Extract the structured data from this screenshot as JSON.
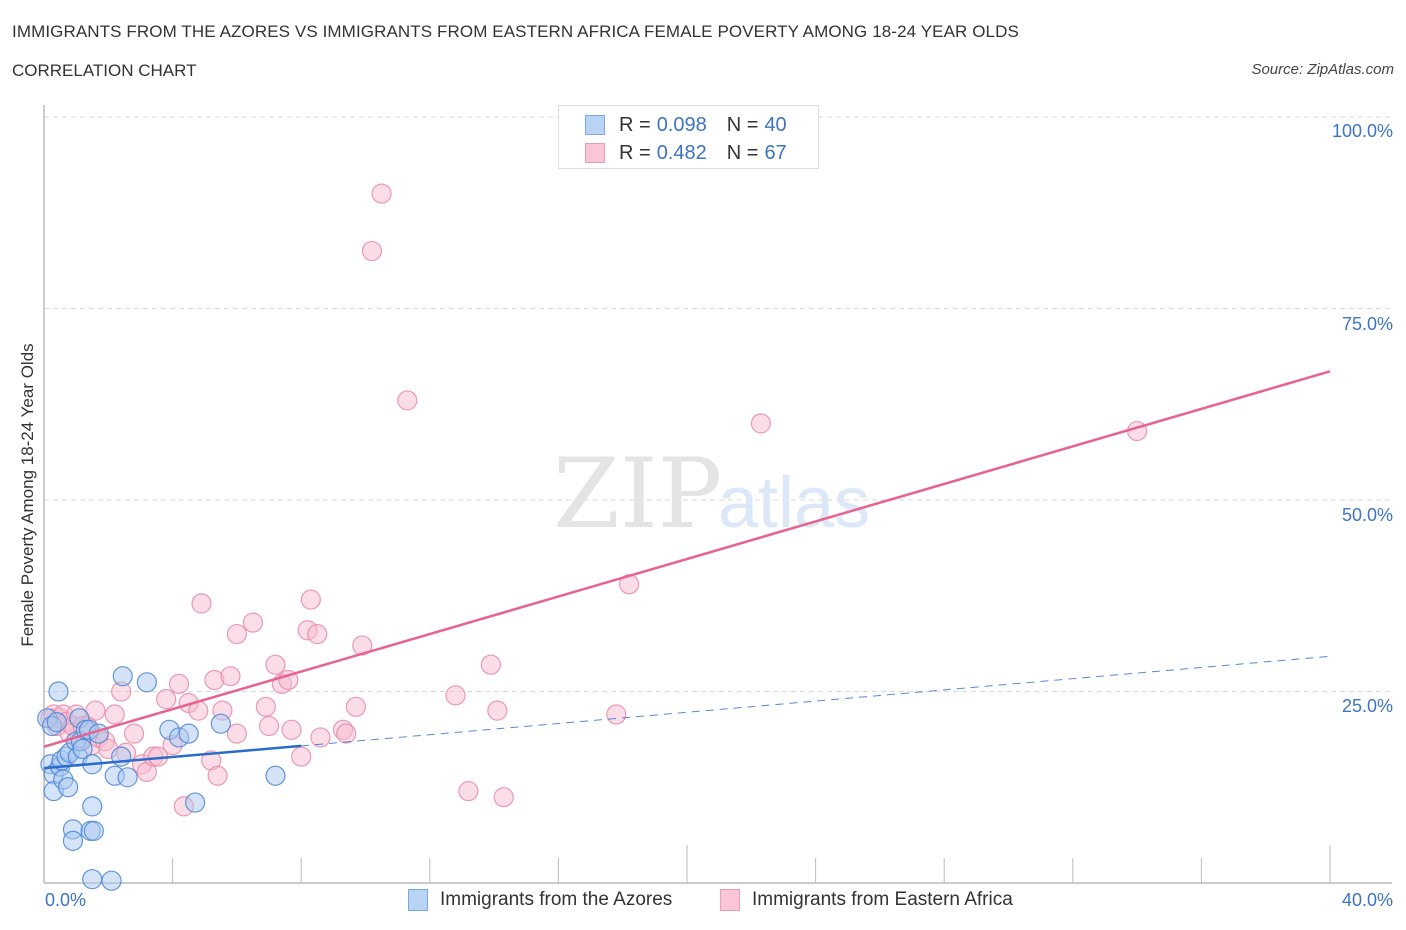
{
  "header": {
    "title": "IMMIGRANTS FROM THE AZORES VS IMMIGRANTS FROM EASTERN AFRICA FEMALE POVERTY AMONG 18-24 YEAR OLDS",
    "subtitle": "CORRELATION CHART",
    "source": "Source: ZipAtlas.com"
  },
  "watermark": {
    "zip": "ZIP",
    "atlas": "atlas"
  },
  "colors": {
    "blue_fill": "#a9c8f0",
    "blue_stroke": "#4a86d6",
    "blue_line": "#2a6ccc",
    "pink_fill": "#f7bcd0",
    "pink_stroke": "#e88aa8",
    "pink_line": "#e8628e",
    "tick_text": "#3d74c4"
  },
  "stats_legend": [
    {
      "r_label": "R = ",
      "r_value": "0.098",
      "n_label": "N = ",
      "n_value": "40"
    },
    {
      "r_label": "R = ",
      "r_value": "0.482",
      "n_label": "N = ",
      "n_value": "67"
    }
  ],
  "bottom_legend": [
    {
      "label": "Immigrants from the Azores"
    },
    {
      "label": "Immigrants from Eastern Africa"
    }
  ],
  "axes": {
    "ylabel": "Female Poverty Among 18-24 Year Olds",
    "yticks": [
      "100.0%",
      "75.0%",
      "50.0%",
      "25.0%"
    ],
    "xticks": [
      "0.0%",
      "40.0%"
    ]
  },
  "chart_data": {
    "type": "scatter",
    "title": "IMMIGRANTS FROM THE AZORES VS IMMIGRANTS FROM EASTERN AFRICA FEMALE POVERTY AMONG 18-24 YEAR OLDS",
    "subtitle": "CORRELATION CHART",
    "xlabel": "",
    "ylabel": "Female Poverty Among 18-24 Year Olds",
    "xlim": [
      0,
      40
    ],
    "ylim": [
      0,
      100
    ],
    "x_ticks": [
      "0.0%",
      "40.0%"
    ],
    "y_ticks": [
      "25.0%",
      "50.0%",
      "75.0%",
      "100.0%"
    ],
    "grid": "horizontal dashed",
    "legend_position": "top-center (stats) and bottom (series)",
    "series": [
      {
        "name": "Immigrants from the Azores",
        "R": 0.098,
        "N": 40,
        "trend": {
          "x": [
            0,
            8.0,
            40
          ],
          "y": [
            15.0,
            17.9,
            29.6
          ],
          "solid_until_x": 8.0
        },
        "points": [
          [
            0.1,
            21.5
          ],
          [
            0.25,
            20.5
          ],
          [
            0.2,
            15.5
          ],
          [
            0.3,
            14.2
          ],
          [
            0.3,
            12.0
          ],
          [
            0.45,
            25.0
          ],
          [
            0.5,
            15.2
          ],
          [
            0.55,
            16.0
          ],
          [
            0.6,
            13.5
          ],
          [
            0.7,
            16.5
          ],
          [
            0.75,
            12.5
          ],
          [
            0.8,
            17.0
          ],
          [
            0.9,
            7.0
          ],
          [
            0.9,
            5.5
          ],
          [
            1.0,
            18.5
          ],
          [
            1.05,
            16.5
          ],
          [
            1.1,
            21.5
          ],
          [
            1.15,
            18.5
          ],
          [
            1.2,
            17.5
          ],
          [
            1.3,
            20.0
          ],
          [
            1.45,
            6.8
          ],
          [
            1.5,
            10.0
          ],
          [
            1.4,
            20.0
          ],
          [
            1.55,
            6.8
          ],
          [
            1.5,
            15.5
          ],
          [
            1.7,
            19.5
          ],
          [
            1.5,
            0.5
          ],
          [
            2.1,
            0.3
          ],
          [
            2.2,
            14.0
          ],
          [
            2.4,
            16.5
          ],
          [
            2.45,
            27.0
          ],
          [
            2.6,
            13.8
          ],
          [
            3.2,
            26.2
          ],
          [
            3.9,
            20.0
          ],
          [
            4.2,
            19.0
          ],
          [
            4.5,
            19.5
          ],
          [
            4.7,
            10.5
          ],
          [
            5.5,
            20.8
          ],
          [
            7.2,
            14.0
          ],
          [
            0.4,
            21.0
          ]
        ]
      },
      {
        "name": "Immigrants from Eastern Africa",
        "R": 0.482,
        "N": 67,
        "trend": {
          "x": [
            0,
            40
          ],
          "y": [
            17.8,
            66.8
          ]
        },
        "points": [
          [
            0.2,
            21.5
          ],
          [
            0.3,
            22.0
          ],
          [
            0.4,
            20.5
          ],
          [
            0.5,
            21.5
          ],
          [
            0.6,
            22.0
          ],
          [
            0.7,
            21.0
          ],
          [
            0.8,
            19.5
          ],
          [
            0.9,
            20.5
          ],
          [
            1.0,
            22.0
          ],
          [
            1.1,
            18.5
          ],
          [
            1.2,
            20.5
          ],
          [
            1.35,
            20.5
          ],
          [
            1.5,
            18.0
          ],
          [
            1.6,
            22.5
          ],
          [
            1.7,
            19.0
          ],
          [
            1.9,
            18.5
          ],
          [
            2.0,
            17.5
          ],
          [
            2.2,
            22.0
          ],
          [
            2.4,
            25.0
          ],
          [
            2.55,
            17.0
          ],
          [
            2.8,
            19.5
          ],
          [
            3.05,
            15.5
          ],
          [
            3.2,
            14.5
          ],
          [
            3.4,
            16.5
          ],
          [
            3.55,
            16.5
          ],
          [
            3.8,
            24.0
          ],
          [
            4.0,
            18.0
          ],
          [
            4.2,
            26.0
          ],
          [
            4.35,
            10.0
          ],
          [
            4.5,
            23.5
          ],
          [
            4.8,
            22.5
          ],
          [
            4.9,
            36.5
          ],
          [
            5.2,
            16.0
          ],
          [
            5.3,
            26.5
          ],
          [
            5.4,
            14.0
          ],
          [
            5.55,
            22.5
          ],
          [
            5.8,
            27.0
          ],
          [
            6.0,
            32.5
          ],
          [
            6.0,
            19.5
          ],
          [
            6.5,
            34.0
          ],
          [
            6.9,
            23.0
          ],
          [
            7.0,
            20.5
          ],
          [
            7.2,
            28.5
          ],
          [
            7.4,
            26.0
          ],
          [
            7.6,
            26.5
          ],
          [
            7.7,
            20.0
          ],
          [
            8.0,
            16.5
          ],
          [
            8.2,
            33.0
          ],
          [
            8.3,
            37.0
          ],
          [
            8.5,
            32.5
          ],
          [
            8.6,
            19.0
          ],
          [
            9.3,
            20.0
          ],
          [
            9.4,
            19.5
          ],
          [
            9.7,
            23.0
          ],
          [
            9.9,
            31.0
          ],
          [
            10.2,
            82.5
          ],
          [
            10.5,
            90.0
          ],
          [
            11.3,
            63.0
          ],
          [
            12.8,
            24.5
          ],
          [
            13.2,
            12.0
          ],
          [
            13.9,
            28.5
          ],
          [
            14.1,
            22.5
          ],
          [
            14.3,
            11.2
          ],
          [
            17.8,
            22.0
          ],
          [
            18.2,
            39.0
          ],
          [
            22.3,
            60.0
          ],
          [
            34.0,
            59.0
          ]
        ]
      }
    ]
  }
}
